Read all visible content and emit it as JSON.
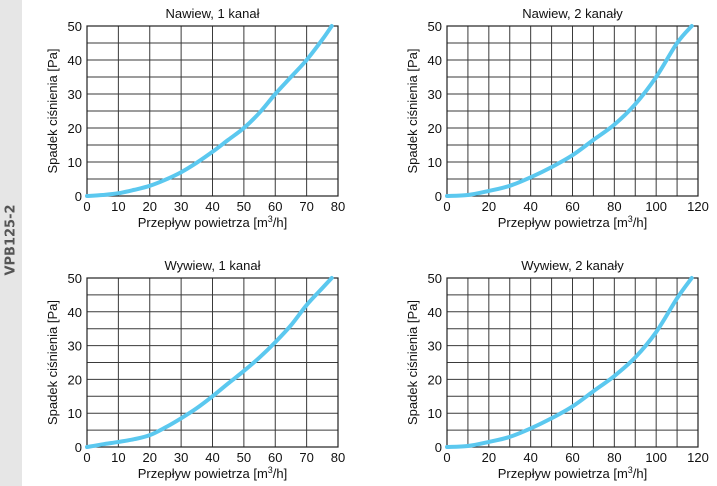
{
  "side_label": "VPB125-2",
  "colors": {
    "curve": "#5bc8ef",
    "grid": "#3a3a3a",
    "side_strip": "#e6e6e6"
  },
  "chart_data": [
    {
      "type": "line",
      "title": "Nawiew, 1 kanał",
      "xlabel": "Przepływ powietrza [m3/h]",
      "xlabel_parts": [
        "Przepływ powietrza [m",
        "3",
        "/h]"
      ],
      "ylabel": "Spadek ciśnienia [Pa]",
      "xlim": [
        0,
        80
      ],
      "ylim": [
        0,
        50
      ],
      "x_grid_step": 10,
      "y_grid_step": 5,
      "x_ticks": [
        0,
        10,
        20,
        30,
        40,
        50,
        60,
        70,
        80
      ],
      "y_ticks": [
        0,
        10,
        20,
        30,
        40,
        50
      ],
      "grid": true,
      "series": [
        {
          "name": "Nawiew, 1 kanał",
          "x": [
            0,
            5,
            10,
            15,
            20,
            25,
            30,
            35,
            40,
            45,
            50,
            55,
            60,
            65,
            70,
            75,
            78
          ],
          "y": [
            0,
            0.3,
            0.8,
            1.8,
            3,
            4.8,
            7,
            9.8,
            13,
            16.5,
            20,
            24.5,
            30,
            35,
            40,
            46,
            50
          ]
        }
      ]
    },
    {
      "type": "line",
      "title": "Nawiew, 2 kanały",
      "xlabel": "Przepływ powietrza [m3/h]",
      "xlabel_parts": [
        "Przepływ powietrza [m",
        "3",
        "/h]"
      ],
      "ylabel": "Spadek ciśnienia [Pa]",
      "xlim": [
        0,
        120
      ],
      "ylim": [
        0,
        50
      ],
      "x_grid_step": 10,
      "y_grid_step": 5,
      "x_ticks": [
        0,
        20,
        40,
        60,
        80,
        100,
        120
      ],
      "y_ticks": [
        0,
        10,
        20,
        30,
        40,
        50
      ],
      "grid": true,
      "series": [
        {
          "name": "Nawiew, 2 kanały",
          "x": [
            0,
            10,
            20,
            30,
            40,
            50,
            60,
            70,
            80,
            90,
            100,
            110,
            117
          ],
          "y": [
            0,
            0.3,
            1.5,
            3,
            5.5,
            8.5,
            12,
            16.5,
            21,
            27,
            35,
            45,
            50
          ]
        }
      ]
    },
    {
      "type": "line",
      "title": "Wywiew, 1 kanał",
      "xlabel": "Przepływ powietrza [m3/h]",
      "xlabel_parts": [
        "Przepływ powietrza [m",
        "3",
        "/h]"
      ],
      "ylabel": "Spadek ciśnienia [Pa]",
      "xlim": [
        0,
        80
      ],
      "ylim": [
        0,
        50
      ],
      "x_grid_step": 10,
      "y_grid_step": 5,
      "x_ticks": [
        0,
        10,
        20,
        30,
        40,
        50,
        60,
        70,
        80
      ],
      "y_ticks": [
        0,
        10,
        20,
        30,
        40,
        50
      ],
      "grid": true,
      "series": [
        {
          "name": "Wywiew, 1 kanał",
          "x": [
            0,
            5,
            10,
            15,
            20,
            25,
            30,
            35,
            40,
            45,
            50,
            55,
            60,
            65,
            70,
            75,
            78
          ],
          "y": [
            0,
            0.8,
            1.5,
            2.3,
            3.5,
            5.8,
            8.5,
            11.5,
            15,
            18.8,
            22.5,
            26.5,
            31,
            36,
            42,
            47,
            50
          ]
        }
      ]
    },
    {
      "type": "line",
      "title": "Wywiew, 2 kanały",
      "xlabel": "Przepływ powietrza [m3/h]",
      "xlabel_parts": [
        "Przepływ powietrza [m",
        "3",
        "/h]"
      ],
      "ylabel": "Spadek ciśnienia [Pa]",
      "xlim": [
        0,
        120
      ],
      "ylim": [
        0,
        50
      ],
      "x_grid_step": 10,
      "y_grid_step": 5,
      "x_ticks": [
        0,
        20,
        40,
        60,
        80,
        100,
        120
      ],
      "y_ticks": [
        0,
        10,
        20,
        30,
        40,
        50
      ],
      "grid": true,
      "series": [
        {
          "name": "Wywiew, 2 kanały",
          "x": [
            0,
            10,
            20,
            30,
            40,
            50,
            60,
            70,
            80,
            90,
            100,
            110,
            117
          ],
          "y": [
            0,
            0.3,
            1.5,
            3,
            5.5,
            8.5,
            12,
            16.5,
            21,
            26.5,
            34,
            44,
            50
          ]
        }
      ]
    }
  ]
}
